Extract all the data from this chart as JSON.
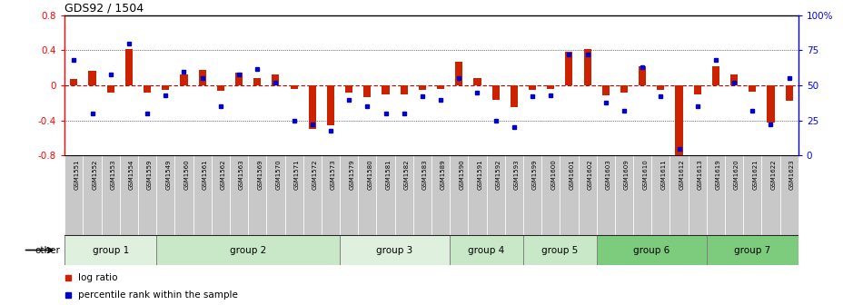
{
  "title": "GDS92 / 1504",
  "samples": [
    "GSM1551",
    "GSM1552",
    "GSM1553",
    "GSM1554",
    "GSM1559",
    "GSM1549",
    "GSM1560",
    "GSM1561",
    "GSM1562",
    "GSM1563",
    "GSM1569",
    "GSM1570",
    "GSM1571",
    "GSM1572",
    "GSM1573",
    "GSM1579",
    "GSM1580",
    "GSM1581",
    "GSM1582",
    "GSM1583",
    "GSM1589",
    "GSM1590",
    "GSM1591",
    "GSM1592",
    "GSM1593",
    "GSM1599",
    "GSM1600",
    "GSM1601",
    "GSM1602",
    "GSM1603",
    "GSM1609",
    "GSM1610",
    "GSM1611",
    "GSM1612",
    "GSM1613",
    "GSM1619",
    "GSM1620",
    "GSM1621",
    "GSM1622",
    "GSM1623"
  ],
  "log_ratio": [
    0.07,
    0.17,
    -0.08,
    0.42,
    -0.08,
    -0.05,
    0.12,
    0.18,
    -0.06,
    0.15,
    0.08,
    0.12,
    -0.04,
    -0.5,
    -0.45,
    -0.08,
    -0.13,
    -0.1,
    -0.1,
    -0.05,
    -0.04,
    0.27,
    0.08,
    -0.16,
    -0.25,
    -0.05,
    -0.04,
    0.38,
    0.42,
    -0.11,
    -0.08,
    0.22,
    -0.05,
    -0.82,
    -0.1,
    0.22,
    0.13,
    -0.07,
    -0.42,
    -0.18
  ],
  "percentile_rank": [
    68,
    30,
    58,
    80,
    30,
    43,
    60,
    55,
    35,
    58,
    62,
    52,
    25,
    22,
    18,
    40,
    35,
    30,
    30,
    42,
    40,
    55,
    45,
    25,
    20,
    42,
    43,
    72,
    72,
    38,
    32,
    63,
    42,
    5,
    35,
    68,
    52,
    32,
    22,
    55
  ],
  "group_names": [
    "group 1",
    "group 2",
    "group 3",
    "group 4",
    "group 5",
    "group 6",
    "group 7"
  ],
  "group_starts": [
    0,
    5,
    15,
    21,
    25,
    29,
    35
  ],
  "group_ends": [
    4,
    14,
    20,
    24,
    28,
    34,
    39
  ],
  "group_colors": [
    "#dff0df",
    "#c8e8c8",
    "#dff0df",
    "#c8e8c8",
    "#c8e8c8",
    "#7dcc7d",
    "#7dcc7d"
  ],
  "ylim": [
    -0.8,
    0.8
  ],
  "yticks_left": [
    -0.8,
    -0.4,
    0.0,
    0.4,
    0.8
  ],
  "yticks_right": [
    0,
    25,
    50,
    75,
    100
  ],
  "bar_color": "#cc2200",
  "dot_color": "#0000cc",
  "hline_color": "#cc0000",
  "ticklabel_bg": "#d0d0d0",
  "legend_bar_label": "log ratio",
  "legend_dot_label": "percentile rank within the sample"
}
